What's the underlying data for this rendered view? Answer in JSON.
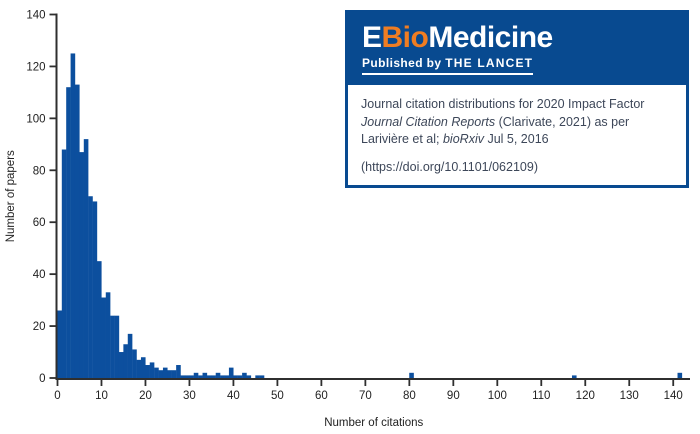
{
  "infobox": {
    "logo": {
      "brand_e": "E",
      "brand_bio": "Bio",
      "brand_rest": "Medicine",
      "publisher_prefix": "Published by ",
      "publisher_name": "THE LANCET"
    },
    "caption": {
      "line1": "Journal citation distributions for 2020 Impact Factor",
      "line2_italic": "Journal Citation Reports",
      "line2_rest": " (Clarivate, 2021) as per",
      "line3_pre": "Larivière et al; ",
      "line3_italic": "bioRxiv",
      "line3_post": " Jul 5, 2016",
      "line4": "(https://doi.org/10.1101/062109)"
    }
  },
  "colors": {
    "brand_blue": "#084a90",
    "bar_blue": "#0c4f9e",
    "orange": "#ef7d22",
    "caption_text": "#3d4759",
    "axis": "#2f2f2f",
    "tick_label": "#222222"
  },
  "chart_data": {
    "type": "bar",
    "title": "",
    "xlabel": "Number of citations",
    "ylabel": "Number of papers",
    "xlim": [
      0,
      143.7
    ],
    "ylim": [
      0,
      140
    ],
    "x_ticks": [
      0,
      10,
      20,
      30,
      40,
      50,
      60,
      70,
      80,
      90,
      100,
      110,
      120,
      130,
      140
    ],
    "y_ticks": [
      0,
      20,
      40,
      60,
      80,
      100,
      120,
      140
    ],
    "bin_width": 1,
    "grid": false,
    "legend": "none",
    "points": [
      [
        0,
        26
      ],
      [
        1,
        88
      ],
      [
        2,
        112
      ],
      [
        3,
        125
      ],
      [
        4,
        113
      ],
      [
        5,
        87
      ],
      [
        6,
        92
      ],
      [
        7,
        70
      ],
      [
        8,
        68
      ],
      [
        9,
        45
      ],
      [
        10,
        31
      ],
      [
        11,
        33
      ],
      [
        12,
        24
      ],
      [
        13,
        24
      ],
      [
        14,
        10
      ],
      [
        15,
        13
      ],
      [
        16,
        17
      ],
      [
        17,
        11
      ],
      [
        18,
        7
      ],
      [
        19,
        8
      ],
      [
        20,
        5
      ],
      [
        21,
        6
      ],
      [
        22,
        4
      ],
      [
        23,
        3
      ],
      [
        24,
        4
      ],
      [
        25,
        3
      ],
      [
        26,
        3
      ],
      [
        27,
        5
      ],
      [
        28,
        1
      ],
      [
        29,
        1
      ],
      [
        30,
        1
      ],
      [
        31,
        2
      ],
      [
        32,
        1
      ],
      [
        33,
        2
      ],
      [
        34,
        1
      ],
      [
        35,
        1
      ],
      [
        36,
        2
      ],
      [
        37,
        1
      ],
      [
        38,
        1
      ],
      [
        39,
        4
      ],
      [
        40,
        1
      ],
      [
        41,
        1
      ],
      [
        42,
        2
      ],
      [
        43,
        1
      ],
      [
        45,
        1
      ],
      [
        46,
        1
      ],
      [
        80,
        2
      ],
      [
        117,
        1
      ],
      [
        141,
        2
      ]
    ]
  }
}
